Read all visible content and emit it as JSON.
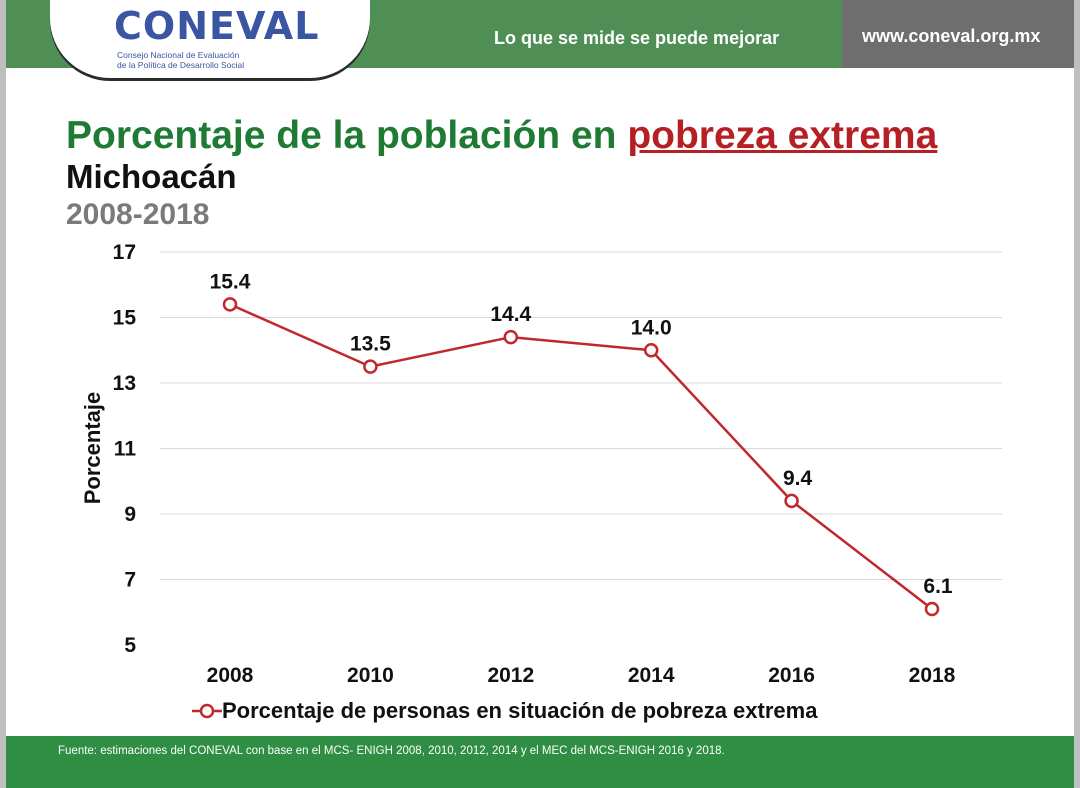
{
  "header": {
    "logo_text": "CONEVAL",
    "logo_subtitle_line1": "Consejo Nacional de Evaluación",
    "logo_subtitle_line2": "de la Política de Desarrollo Social",
    "tagline": "Lo que se mide se puede mejorar",
    "website": "www.coneval.org.mx"
  },
  "title": {
    "prefix": "Porcentaje de la población en ",
    "highlight": "pobreza extrema",
    "subtitle": "Michoacán",
    "years": "2008-2018"
  },
  "colors": {
    "header_green": "#4f8f55",
    "header_gray": "#6e6e6e",
    "title_green": "#1f7a34",
    "highlight_red": "#b61f23",
    "series_line": "#c0282b",
    "footer_green": "#2f8d44"
  },
  "chart_data": {
    "type": "line",
    "x": [
      "2008",
      "2010",
      "2012",
      "2014",
      "2016",
      "2018"
    ],
    "series": [
      {
        "name": "Porcentaje de personas en situación de pobreza extrema",
        "values": [
          15.4,
          13.5,
          14.4,
          14.0,
          9.4,
          6.1
        ],
        "labels": [
          "15.4",
          "13.5",
          "14.4",
          "14.0",
          "9.4",
          "6.1"
        ]
      }
    ],
    "ylabel": "Porcentaje",
    "xlabel": "",
    "ylim": [
      5,
      17
    ],
    "yticks": [
      "5",
      "7",
      "9",
      "11",
      "13",
      "15",
      "17"
    ],
    "grid": true,
    "legend": "bottom"
  },
  "footer": {
    "source": "Fuente: estimaciones del CONEVAL con base en el MCS- ENIGH 2008, 2010, 2012, 2014 y el MEC del MCS-ENIGH 2016 y 2018."
  }
}
